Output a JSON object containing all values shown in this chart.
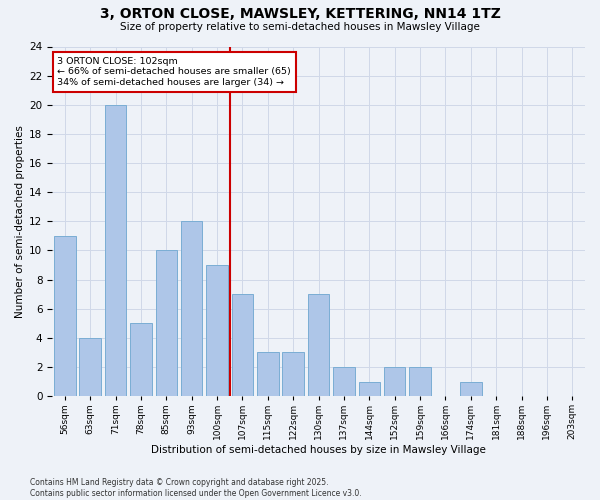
{
  "title": "3, ORTON CLOSE, MAWSLEY, KETTERING, NN14 1TZ",
  "subtitle": "Size of property relative to semi-detached houses in Mawsley Village",
  "xlabel": "Distribution of semi-detached houses by size in Mawsley Village",
  "ylabel": "Number of semi-detached properties",
  "footnote1": "Contains HM Land Registry data © Crown copyright and database right 2025.",
  "footnote2": "Contains public sector information licensed under the Open Government Licence v3.0.",
  "bar_labels": [
    "56sqm",
    "63sqm",
    "71sqm",
    "78sqm",
    "85sqm",
    "93sqm",
    "100sqm",
    "107sqm",
    "115sqm",
    "122sqm",
    "130sqm",
    "137sqm",
    "144sqm",
    "152sqm",
    "159sqm",
    "166sqm",
    "174sqm",
    "181sqm",
    "188sqm",
    "196sqm",
    "203sqm"
  ],
  "bar_values": [
    11,
    4,
    20,
    5,
    10,
    12,
    9,
    7,
    3,
    3,
    7,
    2,
    1,
    2,
    2,
    0,
    1,
    0,
    0,
    0,
    0
  ],
  "bar_color": "#aec6e8",
  "bar_edgecolor": "#7aadd4",
  "vline_color": "#cc0000",
  "vline_idx": 6,
  "ylim": [
    0,
    24
  ],
  "yticks": [
    0,
    2,
    4,
    6,
    8,
    10,
    12,
    14,
    16,
    18,
    20,
    22,
    24
  ],
  "annotation_title": "3 ORTON CLOSE: 102sqm",
  "annotation_line1": "← 66% of semi-detached houses are smaller (65)",
  "annotation_line2": "34% of semi-detached houses are larger (34) →",
  "annotation_box_color": "#ffffff",
  "annotation_edge_color": "#cc0000",
  "grid_color": "#d0d8e8",
  "bg_color": "#eef2f8"
}
